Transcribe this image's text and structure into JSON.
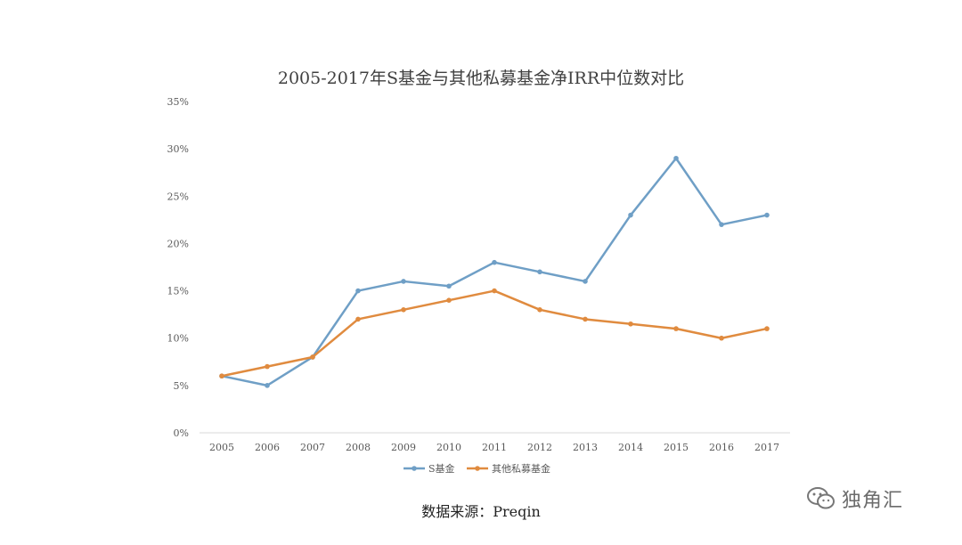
{
  "chart_data": {
    "type": "line",
    "title": "2005-2017年S基金与其他私募基金净IRR中位数对比",
    "categories": [
      "2005",
      "2006",
      "2007",
      "2008",
      "2009",
      "2010",
      "2011",
      "2012",
      "2013",
      "2014",
      "2015",
      "2016",
      "2017"
    ],
    "y_ticks": [
      "0%",
      "5%",
      "10%",
      "15%",
      "20%",
      "25%",
      "30%",
      "35%"
    ],
    "ylim": [
      0,
      35
    ],
    "grid": false,
    "legend_position": "bottom",
    "series": [
      {
        "name": "S基金",
        "color": "#6f9fc6",
        "values": [
          6,
          5,
          8,
          15,
          16,
          15.5,
          18,
          17,
          16,
          23,
          29,
          22,
          23
        ]
      },
      {
        "name": "其他私募基金",
        "color": "#e08b3f",
        "values": [
          6,
          7,
          8,
          12,
          13,
          14,
          15,
          13,
          12,
          11.5,
          11,
          10,
          11
        ]
      }
    ]
  },
  "source": "数据来源：Preqin",
  "watermark": {
    "text": "独角汇",
    "icon": "wechat-bubble-icon"
  }
}
